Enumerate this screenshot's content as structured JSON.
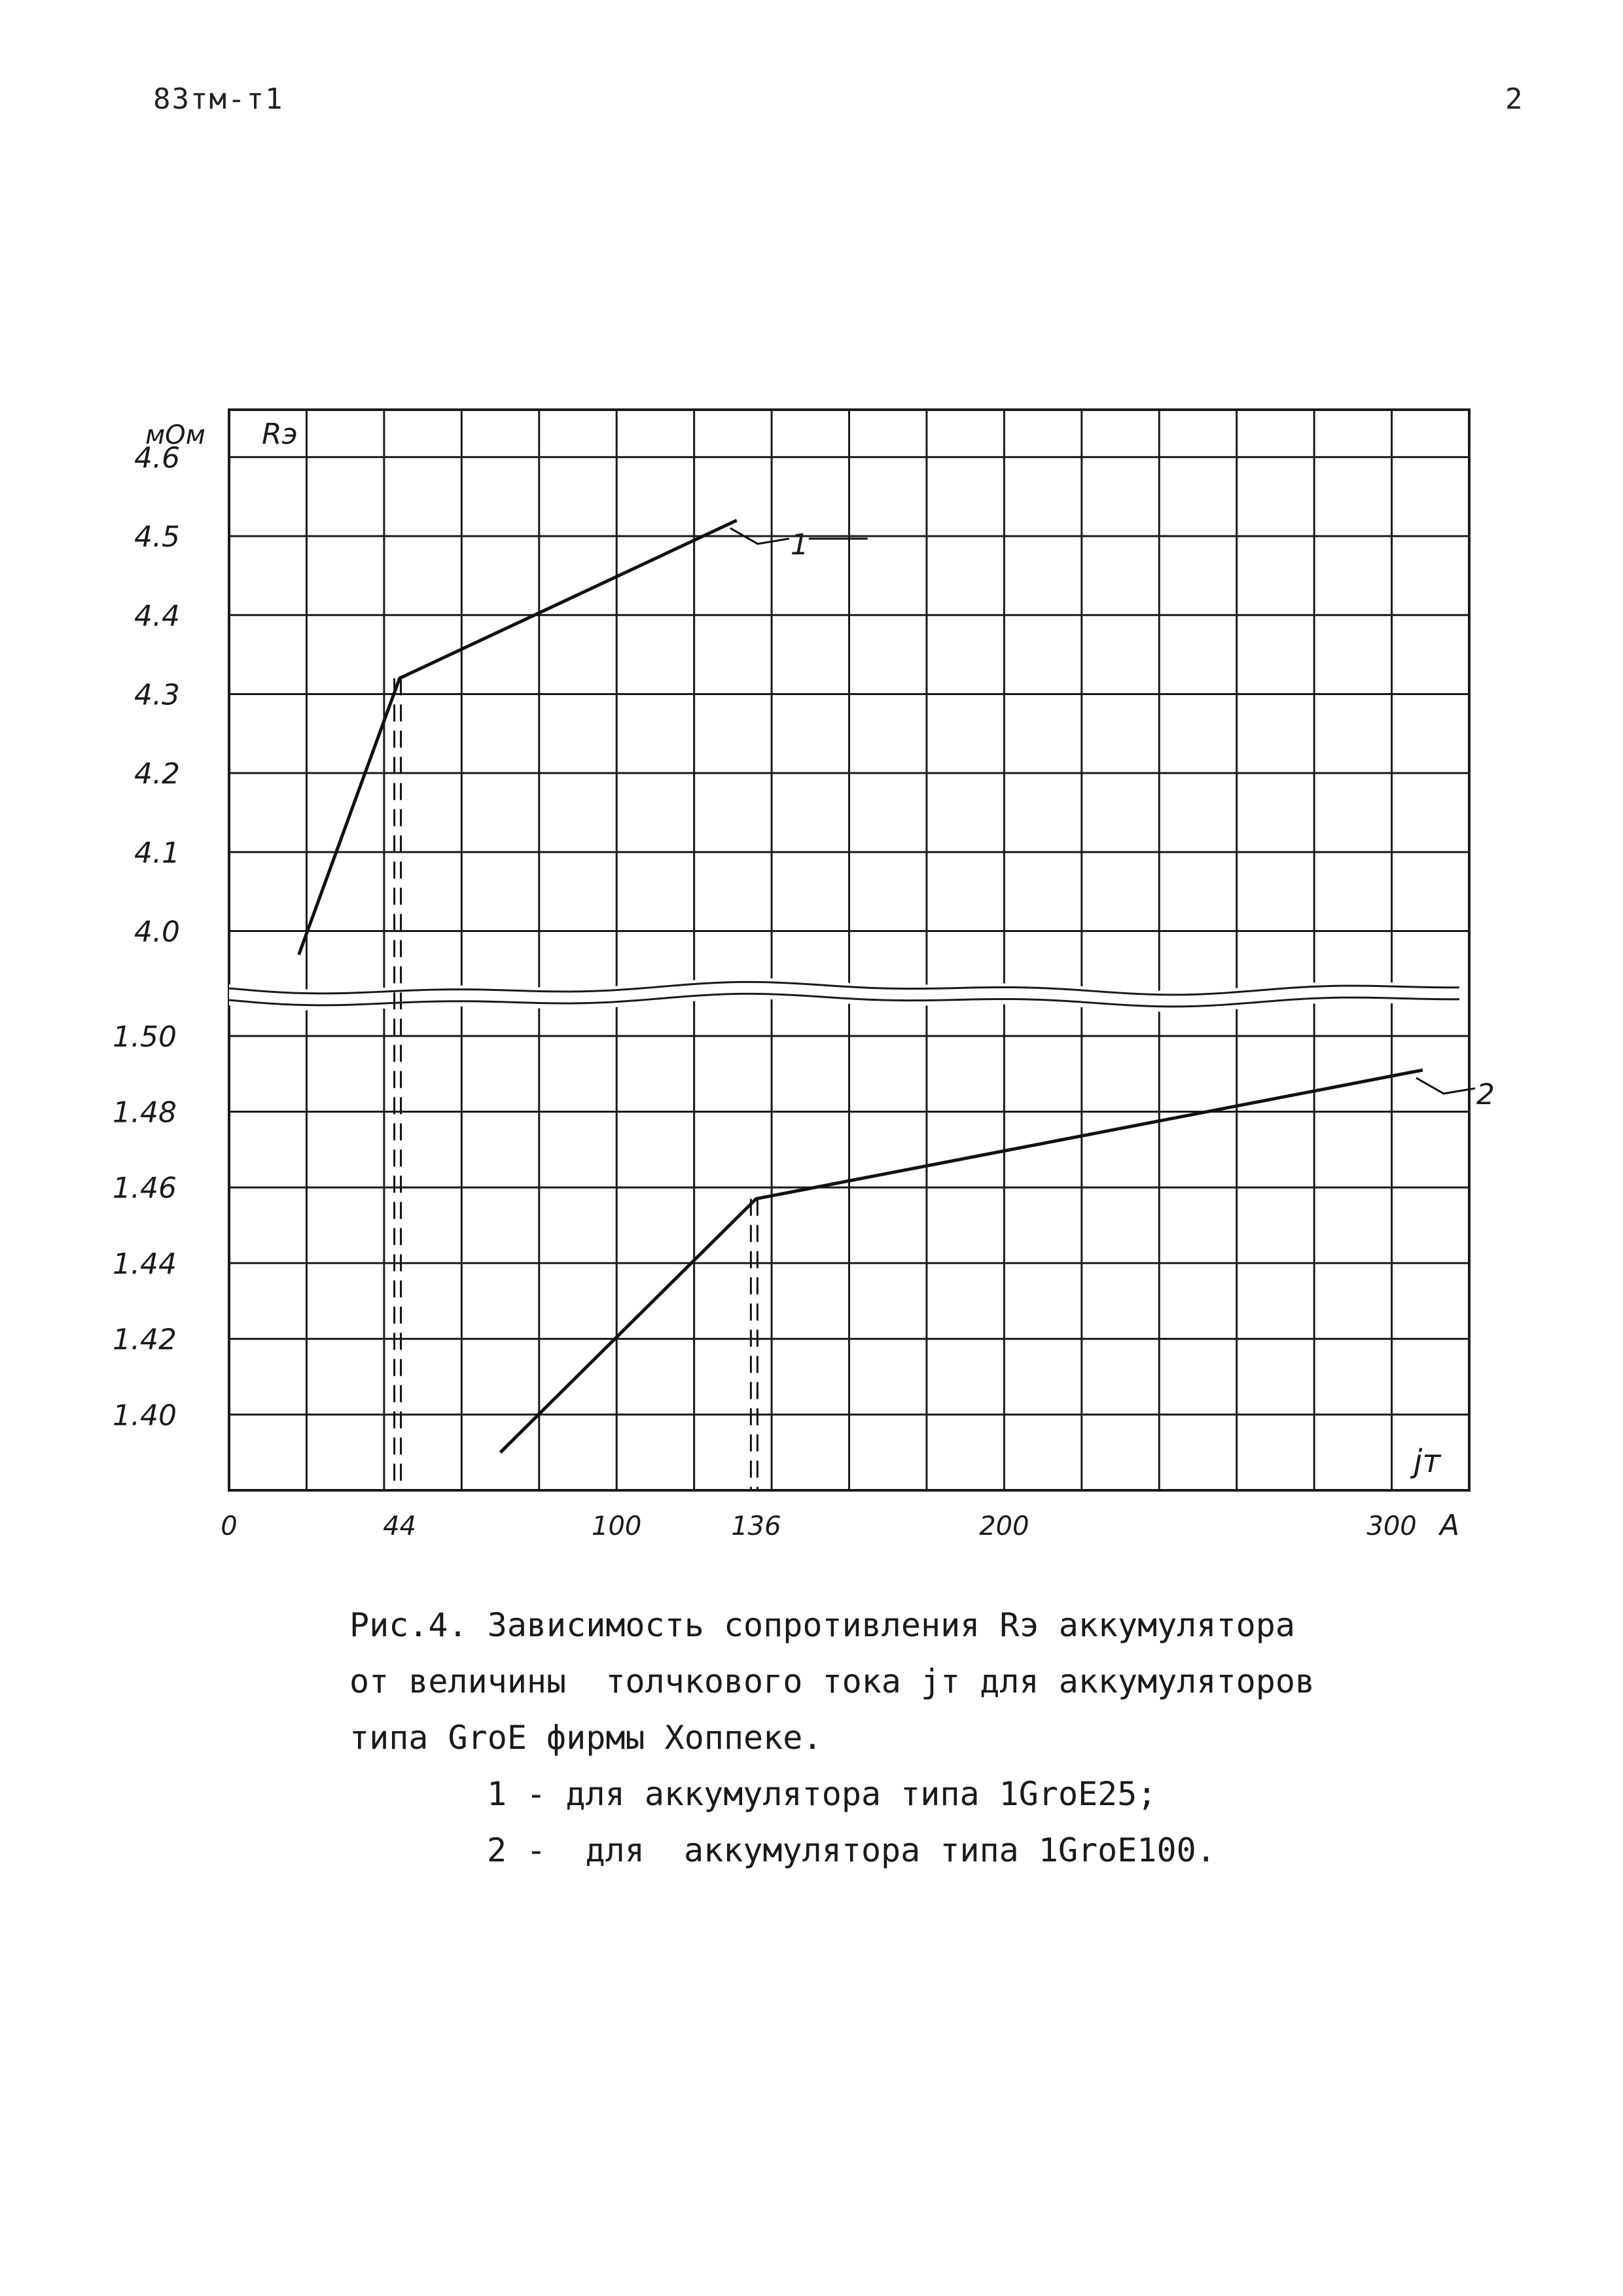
{
  "header": {
    "doc_code": "83тм-т1",
    "page_number": "2"
  },
  "caption": {
    "lines": [
      "Рис.4. Зависимость сопротивления Rэ аккумулятора",
      "от величины  толчкового тока jт для аккумуляторов",
      "типа GroE фирмы Хоппеке."
    ],
    "legend": [
      "1 - для аккумулятора типа 1GroE25;",
      "2 -  для  аккумулятора типа 1GroE100."
    ]
  },
  "chart_data": {
    "type": "line",
    "y_unit": "мОм",
    "y_symbol": "Rэ",
    "x_symbol": "jт",
    "x_unit": "А",
    "xlim": [
      0,
      320
    ],
    "x_ticks": [
      "0",
      "44",
      "100",
      "136",
      "200",
      "300"
    ],
    "x_tick_values": [
      0,
      44,
      100,
      136,
      200,
      300
    ],
    "x_grid_step": 20,
    "y_upper": {
      "range": [
        3.93,
        4.66
      ],
      "ticks": [
        "4.6",
        "4.5",
        "4.4",
        "4.3",
        "4.2",
        "4.1",
        "4.0"
      ],
      "tick_values": [
        4.6,
        4.5,
        4.4,
        4.3,
        4.2,
        4.1,
        4.0
      ]
    },
    "y_lower": {
      "range": [
        1.38,
        1.51
      ],
      "ticks": [
        "1.50",
        "1.48",
        "1.46",
        "1.44",
        "1.42",
        "1.40"
      ],
      "tick_values": [
        1.5,
        1.48,
        1.46,
        1.44,
        1.42,
        1.4
      ]
    },
    "axis_break": true,
    "grid": true,
    "series": [
      {
        "name": "1",
        "axis": "upper",
        "x": [
          18,
          44,
          131
        ],
        "y": [
          3.97,
          4.32,
          4.52
        ],
        "dashed_drop_x": 44
      },
      {
        "name": "2",
        "axis": "lower",
        "x": [
          70,
          136,
          308
        ],
        "y": [
          1.39,
          1.457,
          1.491
        ],
        "dashed_drop_x": 136
      }
    ]
  }
}
